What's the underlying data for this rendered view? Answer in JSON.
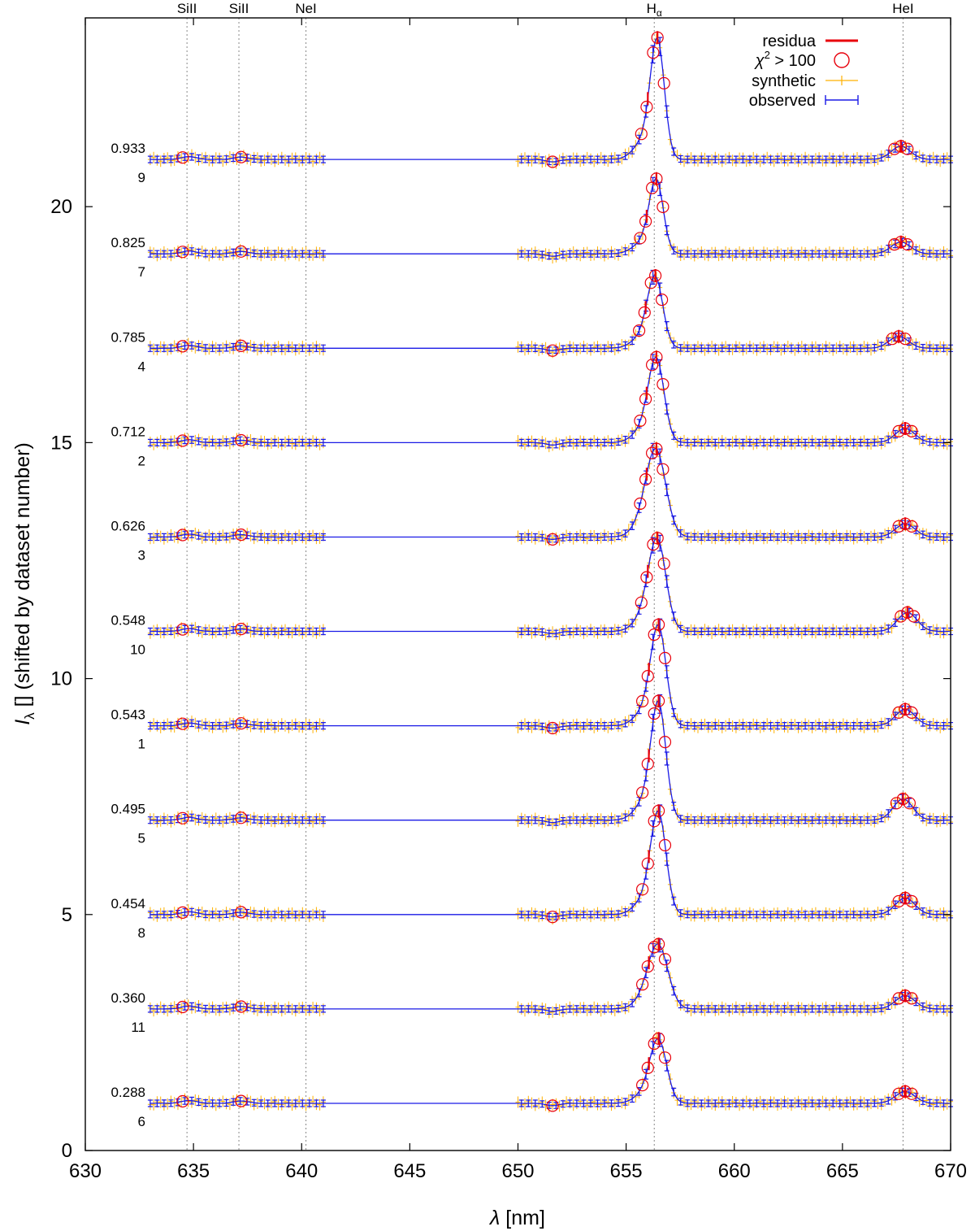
{
  "chart_data": {
    "type": "line",
    "title": "",
    "xlabel_symbol": "λ",
    "xlabel_unit": " [nm]",
    "ylabel_symbol": "I",
    "ylabel_sub": "λ",
    "ylabel_rest": " [] (shifted by dataset number)",
    "xlim": [
      630,
      670
    ],
    "ylim": [
      0,
      24
    ],
    "x_ticks": [
      630,
      635,
      640,
      645,
      650,
      655,
      660,
      665,
      670
    ],
    "y_ticks": [
      0,
      5,
      10,
      15,
      20
    ],
    "grid": false,
    "legend_position": "top-right",
    "legend": [
      {
        "label": "residua",
        "color": "#e8000b",
        "style": "line"
      },
      {
        "label": "χ² > 100",
        "label_chi": "χ",
        "label_sup": "2",
        "label_rest": " > 100",
        "color": "#e8000b",
        "style": "circle"
      },
      {
        "label": "synthetic",
        "color": "#ffb000",
        "style": "plus"
      },
      {
        "label": "observed",
        "color": "#1a1ae6",
        "style": "errorbar"
      }
    ],
    "line_markers": [
      {
        "name": "SiII",
        "x": 634.7
      },
      {
        "name": "SiII",
        "x": 637.1
      },
      {
        "name": "NeI",
        "x": 640.2
      },
      {
        "name": "H",
        "sub": "α",
        "x": 656.3
      },
      {
        "name": "HeI",
        "x": 667.8
      }
    ],
    "spectral_windows": [
      [
        633.0,
        641.0
      ],
      [
        650.0,
        670.0
      ]
    ],
    "series": [
      {
        "phase": "0.933",
        "dataset": "9",
        "offset": 21,
        "ha_peak": 2.35,
        "ha_center": 656.45,
        "ha_sigma": 0.32,
        "hei_amp": 0.28,
        "hei_center": 667.7
      },
      {
        "phase": "0.825",
        "dataset": "7",
        "offset": 19,
        "ha_peak": 1.45,
        "ha_center": 656.4,
        "ha_sigma": 0.32,
        "hei_amp": 0.25,
        "hei_center": 667.7
      },
      {
        "phase": "0.785",
        "dataset": "4",
        "offset": 17,
        "ha_peak": 1.4,
        "ha_center": 656.35,
        "ha_sigma": 0.35,
        "hei_amp": 0.25,
        "hei_center": 667.6
      },
      {
        "phase": "0.712",
        "dataset": "2",
        "offset": 15,
        "ha_peak": 1.65,
        "ha_center": 656.4,
        "ha_sigma": 0.36,
        "hei_amp": 0.3,
        "hei_center": 667.9
      },
      {
        "phase": "0.626",
        "dataset": "3",
        "offset": 13,
        "ha_peak": 1.7,
        "ha_center": 656.4,
        "ha_sigma": 0.45,
        "hei_amp": 0.28,
        "hei_center": 667.9
      },
      {
        "phase": "0.548",
        "dataset": "10",
        "offset": 11,
        "ha_peak": 1.8,
        "ha_center": 656.45,
        "ha_sigma": 0.4,
        "hei_amp": 0.4,
        "hei_center": 668.0
      },
      {
        "phase": "0.543",
        "dataset": "1",
        "offset": 9,
        "ha_peak": 1.95,
        "ha_center": 656.5,
        "ha_sigma": 0.35,
        "hei_amp": 0.35,
        "hei_center": 667.9
      },
      {
        "phase": "0.495",
        "dataset": "5",
        "offset": 7,
        "ha_peak": 2.3,
        "ha_center": 656.5,
        "ha_sigma": 0.34,
        "hei_amp": 0.45,
        "hei_center": 667.8
      },
      {
        "phase": "0.454",
        "dataset": "8",
        "offset": 5,
        "ha_peak": 2.0,
        "ha_center": 656.5,
        "ha_sigma": 0.35,
        "hei_amp": 0.35,
        "hei_center": 667.9
      },
      {
        "phase": "0.360",
        "dataset": "11",
        "offset": 3,
        "ha_peak": 1.25,
        "ha_center": 656.5,
        "ha_sigma": 0.45,
        "hei_amp": 0.28,
        "hei_center": 667.9
      },
      {
        "phase": "0.288",
        "dataset": "6",
        "offset": 1,
        "ha_peak": 1.25,
        "ha_center": 656.5,
        "ha_sigma": 0.38,
        "hei_amp": 0.25,
        "hei_center": 667.9
      }
    ]
  }
}
